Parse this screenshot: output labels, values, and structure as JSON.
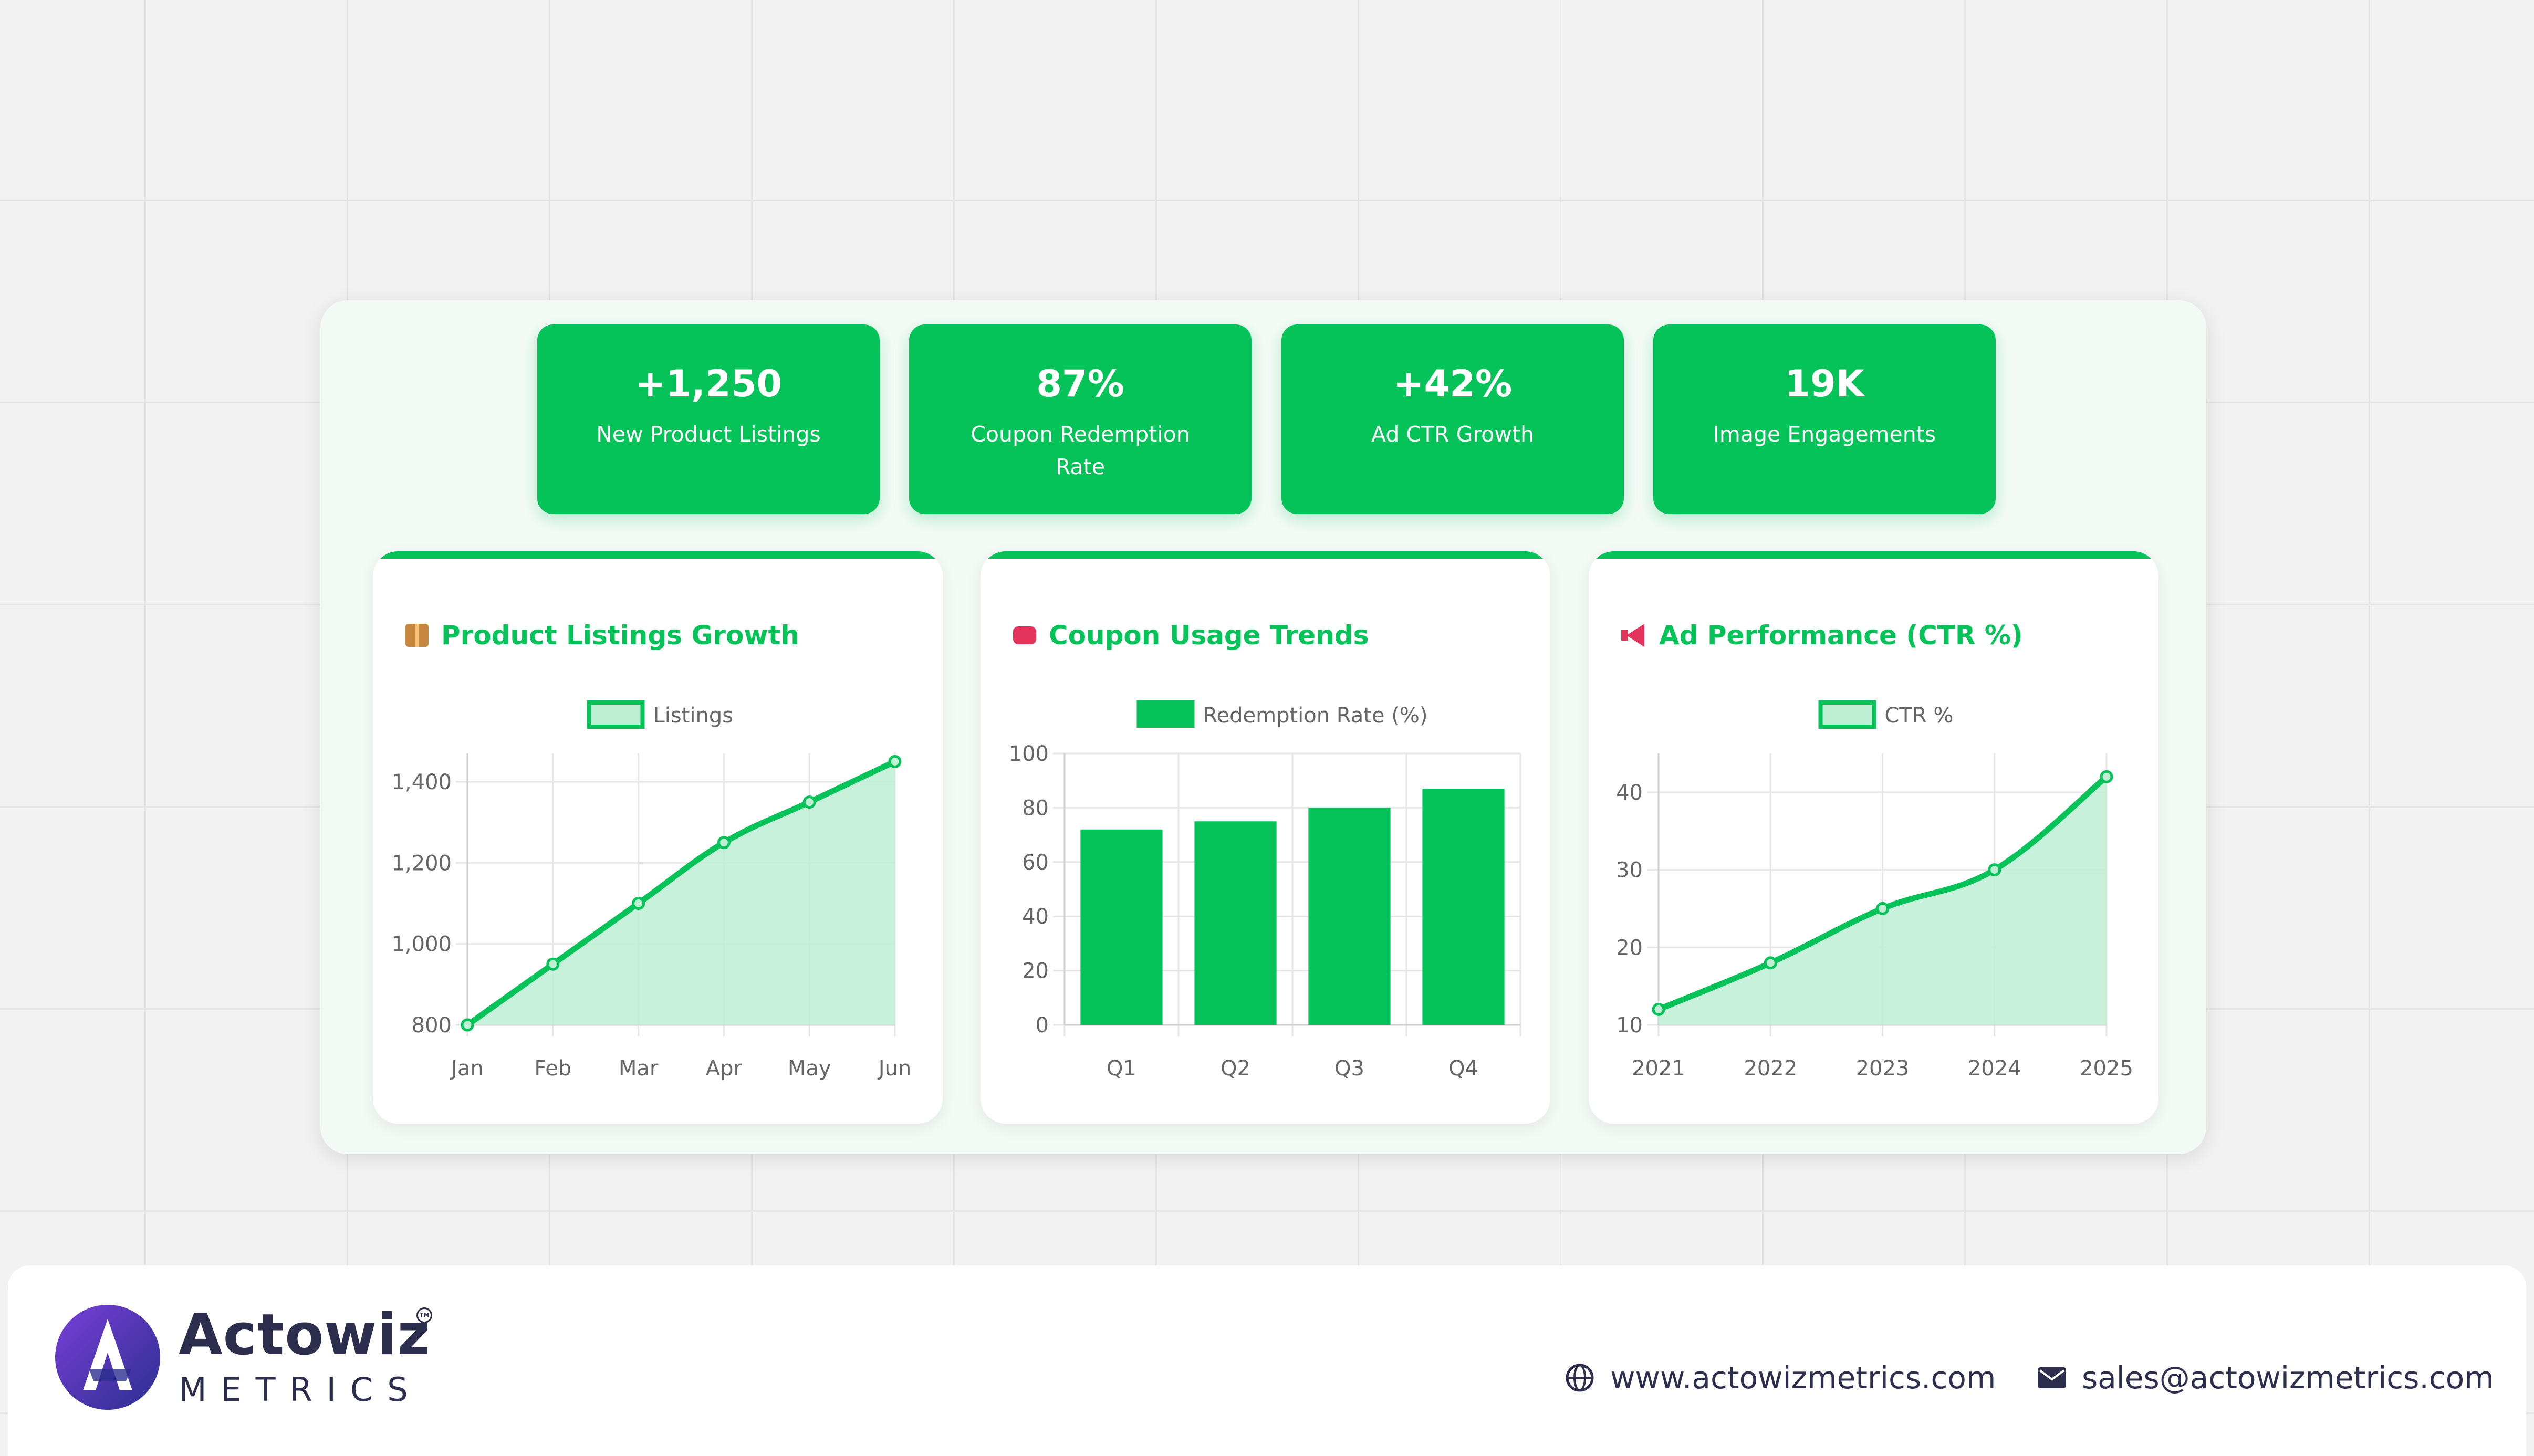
{
  "colors": {
    "accent": "#05c358",
    "accent_fill": "#bdefd3",
    "brand_dark": "#2d2d4e"
  },
  "kpis": [
    {
      "value": "+1,250",
      "label": "New Product Listings"
    },
    {
      "value": "87%",
      "label": "Coupon Redemption Rate"
    },
    {
      "value": "+42%",
      "label": "Ad CTR Growth"
    },
    {
      "value": "19K",
      "label": "Image Engagements"
    }
  ],
  "cards": [
    {
      "title": "Product Listings Growth",
      "icon": "package-icon"
    },
    {
      "title": "Coupon Usage Trends",
      "icon": "coupon-ticket-icon"
    },
    {
      "title": "Ad Performance (CTR %)",
      "icon": "megaphone-icon"
    }
  ],
  "chart_data": [
    {
      "type": "area",
      "categories": [
        "Jan",
        "Feb",
        "Mar",
        "Apr",
        "May",
        "Jun"
      ],
      "series": [
        {
          "name": "Listings",
          "values": [
            800,
            950,
            1100,
            1250,
            1350,
            1450
          ]
        }
      ],
      "yticks": [
        800,
        1000,
        1200,
        1400
      ],
      "ytick_labels": [
        "800",
        "1,000",
        "1,200",
        "1,400"
      ],
      "ylim": [
        800,
        1470
      ],
      "grid": true,
      "legend": "top-center"
    },
    {
      "type": "bar",
      "categories": [
        "Q1",
        "Q2",
        "Q3",
        "Q4"
      ],
      "series": [
        {
          "name": "Redemption Rate (%)",
          "values": [
            72,
            75,
            80,
            87
          ]
        }
      ],
      "yticks": [
        0,
        20,
        40,
        60,
        80,
        100
      ],
      "ytick_labels": [
        "0",
        "20",
        "40",
        "60",
        "80",
        "100"
      ],
      "ylim": [
        0,
        100
      ],
      "grid": true,
      "legend": "top-center"
    },
    {
      "type": "area",
      "categories": [
        "2021",
        "2022",
        "2023",
        "2024",
        "2025"
      ],
      "series": [
        {
          "name": "CTR %",
          "values": [
            12,
            18,
            25,
            30,
            42
          ]
        }
      ],
      "yticks": [
        10,
        20,
        30,
        40
      ],
      "ytick_labels": [
        "10",
        "20",
        "30",
        "40"
      ],
      "ylim": [
        10,
        45
      ],
      "grid": true,
      "legend": "top-center"
    }
  ],
  "footer": {
    "brand_name": "Actowiz",
    "brand_sub": "METRICS",
    "trademark": "TM",
    "website": "www.actowizmetrics.com",
    "email": "sales@actowizmetrics.com"
  }
}
